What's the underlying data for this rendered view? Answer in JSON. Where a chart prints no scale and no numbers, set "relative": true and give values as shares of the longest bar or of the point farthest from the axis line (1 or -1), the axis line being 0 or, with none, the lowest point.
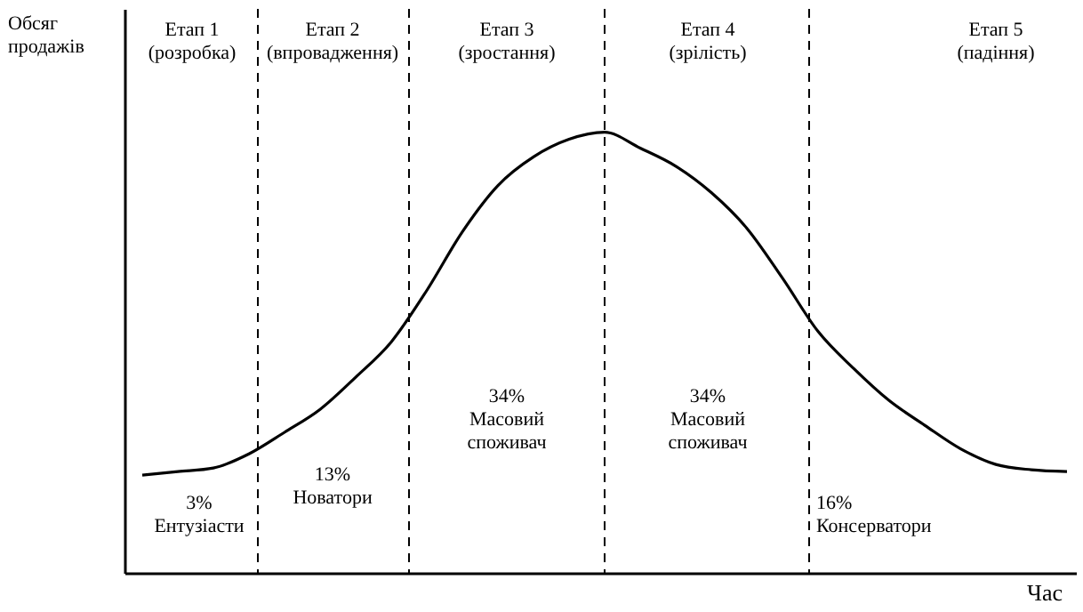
{
  "chart_data": {
    "type": "line",
    "relative": true,
    "tick_labels": false,
    "grid": false,
    "xlabel": "Час",
    "ylabel": "Обсяг\nпродажів",
    "categories": [
      null,
      null,
      null,
      null,
      null,
      null,
      null,
      null,
      null,
      null,
      null,
      null,
      null,
      null,
      null,
      null,
      null,
      null,
      null,
      null,
      null,
      null,
      null,
      null,
      null,
      null,
      null
    ],
    "series": [
      {
        "color": "#000000",
        "values": [
          0.222,
          0.23,
          0.238,
          0.27,
          0.319,
          0.371,
          0.444,
          0.524,
          0.641,
          0.774,
          0.879,
          0.944,
          0.984,
          1.0,
          0.964,
          0.923,
          0.863,
          0.782,
          0.669,
          0.548,
          0.464,
          0.391,
          0.335,
          0.282,
          0.246,
          0.234,
          0.23
        ]
      }
    ],
    "line_style": "solid",
    "annotations": [
      "Етап 1\n(розробка)",
      "Етап 2\n(впровадження)",
      "Етап 3\n(зростання)",
      "Етап 4\n(зрілість)",
      "Етап 5\n(падіння)",
      "3%\nЕнтузіасти",
      "13%\nНоватори",
      "34%\nМасовий\nспоживач",
      "34%\nМасовий\nспоживач",
      "16%\nКонсерватори"
    ]
  }
}
